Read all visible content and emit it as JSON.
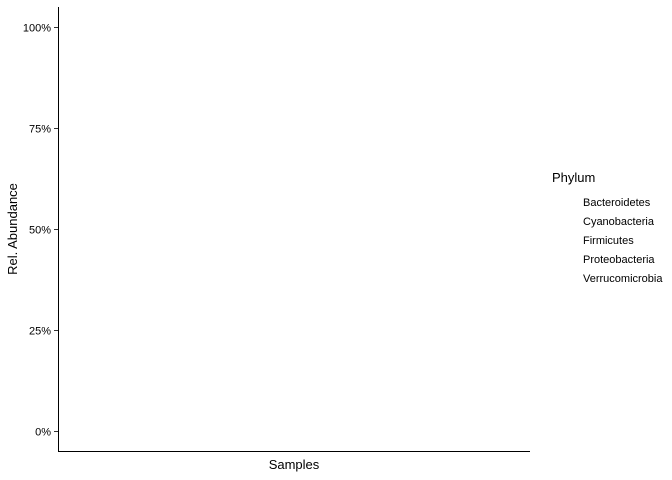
{
  "chart_data": {
    "type": "bar",
    "xlabel": "Samples",
    "ylabel": "Rel. Abundance",
    "ylim": [
      0,
      1.05
    ],
    "yticks": [
      0,
      0.25,
      0.5,
      0.75,
      1.0
    ],
    "ytick_labels": [
      "0%",
      "25%",
      "50%",
      "75%",
      "100%"
    ],
    "categories": [],
    "series": [
      {
        "name": "Bacteroidetes",
        "values": []
      },
      {
        "name": "Cyanobacteria",
        "values": []
      },
      {
        "name": "Firmicutes",
        "values": []
      },
      {
        "name": "Proteobacteria",
        "values": []
      },
      {
        "name": "Verrucomicrobia",
        "values": []
      }
    ],
    "legend": {
      "title": "Phylum",
      "position": "right",
      "entries": [
        "Bacteroidetes",
        "Cyanobacteria",
        "Firmicutes",
        "Proteobacteria",
        "Verrucomicrobia"
      ]
    },
    "grid": false,
    "stacked": true
  }
}
